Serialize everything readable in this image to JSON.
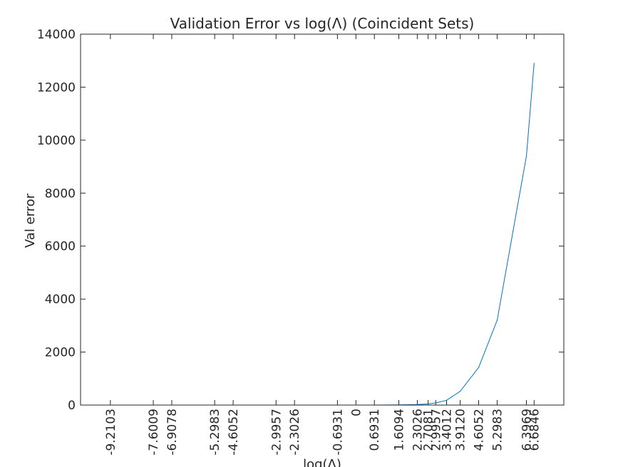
{
  "chart_data": {
    "type": "line",
    "title": "Validation Error vs log(Λ) (Coincident Sets)",
    "xlabel": "log(Λ)",
    "ylabel": "Val error",
    "xlim": [
      -10.33,
      7.8
    ],
    "ylim": [
      0,
      14000
    ],
    "grid": false,
    "x_tick_labels": [
      "-9.2103",
      "-7.6009",
      "-6.9078",
      "-5.2983",
      "-4.6052",
      "-2.9957",
      "-2.3026",
      "-0.6931",
      "0",
      "0.6931",
      "1.6094",
      "2.3026",
      "2.7081",
      "2.9957",
      "3.4012",
      "3.9120",
      "4.6052",
      "5.2983",
      "6.3969",
      "6.6846"
    ],
    "y_tick_labels": [
      "0",
      "2000",
      "4000",
      "6000",
      "8000",
      "10000",
      "12000",
      "14000"
    ],
    "y_ticks": [
      0,
      2000,
      4000,
      6000,
      8000,
      10000,
      12000,
      14000
    ],
    "series": [
      {
        "color": "#0072bd",
        "x": [
          -9.2103,
          -7.6009,
          -6.9078,
          -5.2983,
          -4.6052,
          -2.9957,
          -2.3026,
          -0.6931,
          0,
          0.6931,
          1.6094,
          2.3026,
          2.7081,
          2.9957,
          3.4012,
          3.912,
          4.6052,
          5.2983,
          6.3969,
          6.6846
        ],
        "y": [
          0,
          0,
          0,
          0,
          0,
          0,
          0,
          0,
          0,
          0,
          5,
          20,
          45,
          80,
          180,
          520,
          1420,
          3200,
          9400,
          12900
        ]
      }
    ]
  }
}
